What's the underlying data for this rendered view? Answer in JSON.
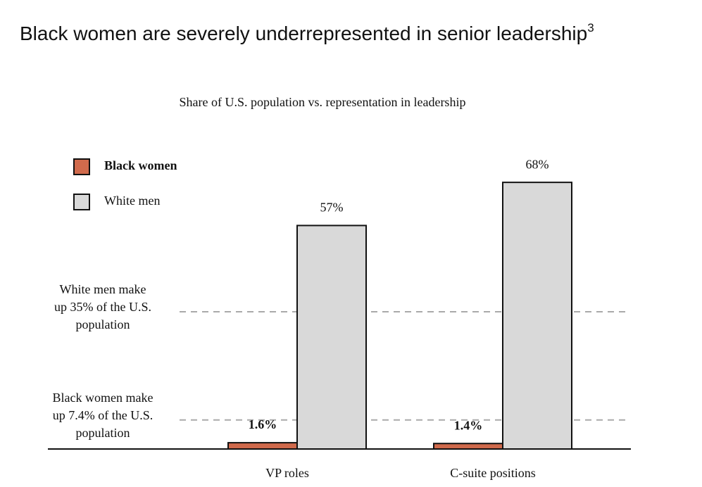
{
  "chart_data": {
    "type": "bar",
    "title": "Black women are severely underrepresented in senior leadership",
    "title_note": "3",
    "subtitle": "Share of U.S. population vs. representation in leadership",
    "categories": [
      "VP roles",
      "C-suite positions"
    ],
    "series": [
      {
        "name": "Black women",
        "color": "#d06a4c",
        "bold": true,
        "values": [
          1.6,
          1.4
        ],
        "value_labels": [
          "1.6%",
          "1.4%"
        ]
      },
      {
        "name": "White men",
        "color": "#d9d9d9",
        "bold": false,
        "values": [
          57,
          68
        ],
        "value_labels": [
          "57%",
          "68%"
        ]
      }
    ],
    "reference_lines": [
      {
        "value": 35,
        "label": [
          "White men make",
          "up 35% of the U.S.",
          "population"
        ]
      },
      {
        "value": 7.4,
        "label": [
          "Black women make",
          "up 7.4% of the U.S.",
          "population"
        ]
      }
    ],
    "ylim": [
      0,
      70
    ],
    "legend": "top-left"
  }
}
